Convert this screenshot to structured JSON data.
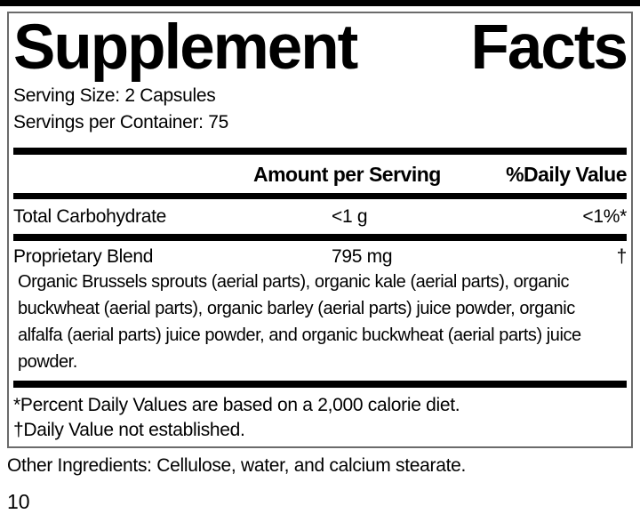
{
  "label": {
    "title_word1": "Supplement",
    "title_word2": "Facts",
    "serving_size": "Serving Size: 2 Capsules",
    "servings_per_container": "Servings per Container: 75",
    "columns": {
      "amount_header": "Amount per Serving",
      "daily_value_header": "%Daily Value"
    },
    "rows": [
      {
        "name": "Total Carbohydrate",
        "amount": "<1 g",
        "daily_value": "<1%*"
      },
      {
        "name": "Proprietary Blend",
        "amount": "795 mg",
        "daily_value": "†",
        "description": "Organic Brussels sprouts (aerial parts), organic kale (aerial parts), organic buckwheat (aerial parts), organic barley (aerial parts) juice powder, organic alfalfa (aerial parts) juice powder, and organic buckwheat (aerial parts) juice powder."
      }
    ],
    "footnotes": [
      "*Percent Daily Values are based on a 2,000 calorie diet.",
      "†Daily Value not established."
    ],
    "colors": {
      "text": "#000000",
      "border": "#6b6b6b",
      "bar": "#000000"
    }
  },
  "page": {
    "other_ingredients": "Other Ingredients: Cellulose, water, and calcium stearate.",
    "page_number": "10"
  }
}
